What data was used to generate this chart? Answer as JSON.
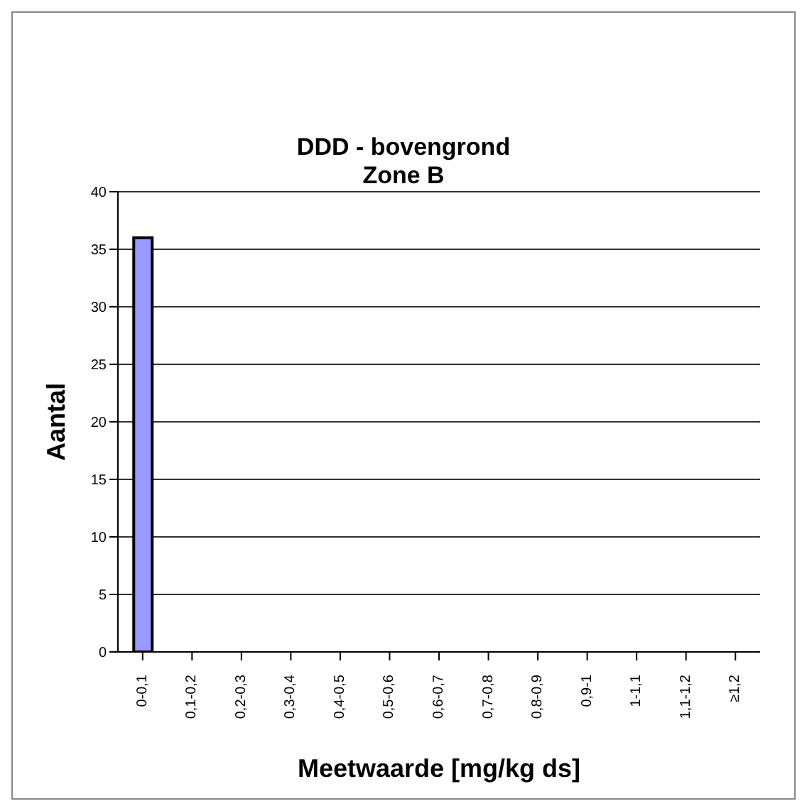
{
  "chart_data": {
    "type": "bar",
    "title": "DDD - bovengrond",
    "subtitle": "Zone B",
    "xlabel": "Meetwaarde [mg/kg ds]",
    "ylabel": "Aantal",
    "categories": [
      "0-0,1",
      "0,1-0,2",
      "0,2-0,3",
      "0,3-0,4",
      "0,4-0,5",
      "0,5-0,6",
      "0,6-0,7",
      "0,7-0,8",
      "0,8-0,9",
      "0,9-1",
      "1-1,1",
      "1,1-1,2",
      "≥1,2"
    ],
    "values": [
      36,
      0,
      0,
      0,
      0,
      0,
      0,
      0,
      0,
      0,
      0,
      0,
      0
    ],
    "color": "#9999ff",
    "ylim": [
      0,
      40
    ],
    "yticks": [
      0,
      5,
      10,
      15,
      20,
      25,
      30,
      35,
      40
    ],
    "grid": "y"
  }
}
